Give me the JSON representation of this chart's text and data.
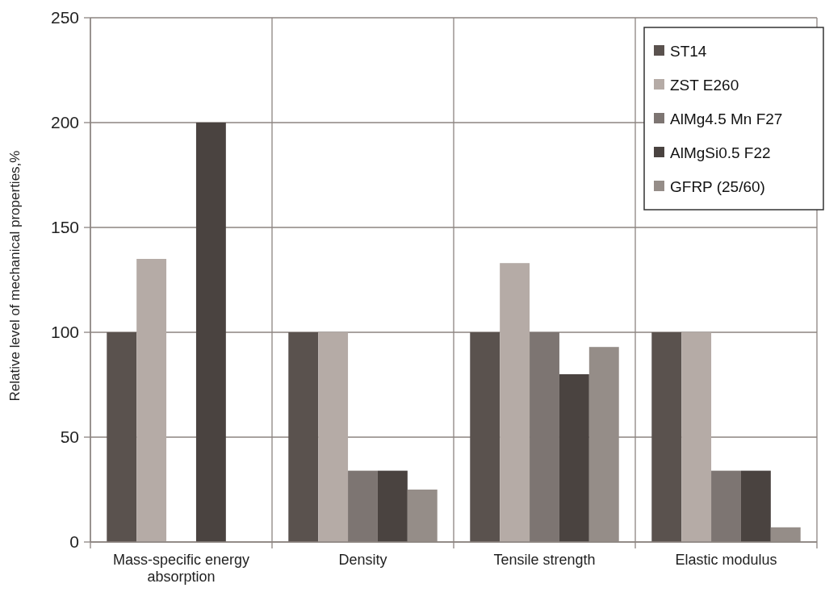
{
  "chart_data": {
    "type": "bar",
    "ylabel": "Relative level of mechanical properties,%",
    "categories": [
      "Mass-specific energy absorption",
      "Density",
      "Tensile strength",
      "Elastic modulus"
    ],
    "series": [
      {
        "name": "ST14",
        "color": "#5a524e",
        "values": [
          100,
          100,
          100,
          100
        ]
      },
      {
        "name": "ZST E260",
        "color": "#b5aba6",
        "values": [
          135,
          100,
          133,
          100
        ]
      },
      {
        "name": "AlMg4.5 Mn F27",
        "color": "#7d7572",
        "values": [
          null,
          34,
          100,
          34
        ]
      },
      {
        "name": "AlMgSi0.5 F22",
        "color": "#4a4340",
        "values": [
          200,
          34,
          80,
          34
        ]
      },
      {
        "name": "GFRP (25/60)",
        "color": "#958d88",
        "values": [
          null,
          25,
          93,
          7
        ]
      }
    ],
    "ylim": [
      0,
      250
    ],
    "yticks": [
      0,
      50,
      100,
      150,
      200,
      250
    ],
    "grid": true,
    "legend": "top right"
  }
}
